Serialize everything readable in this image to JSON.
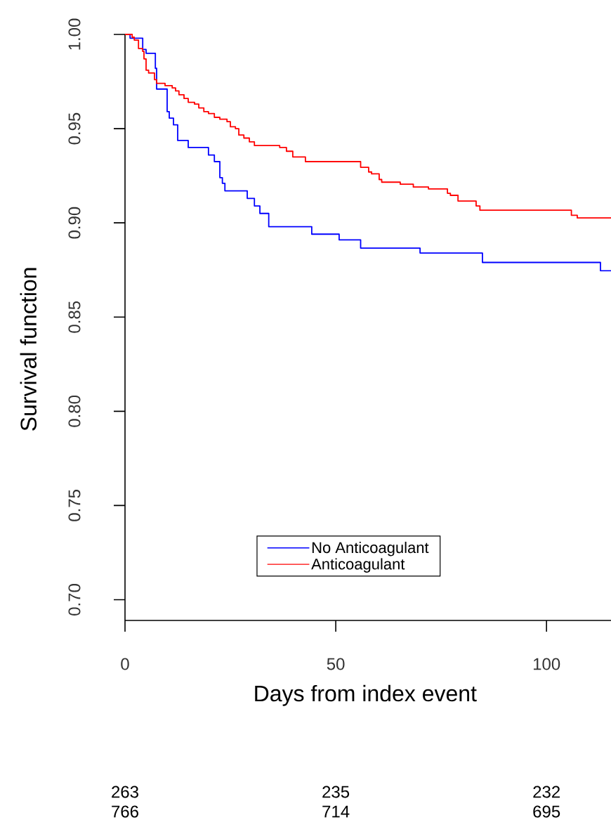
{
  "chart_data": {
    "type": "step",
    "xlabel": "Days from index event",
    "ylabel": "Survival function",
    "xlim": [
      0,
      115.3
    ],
    "ylim": [
      0.689,
      1.0
    ],
    "xticks": [
      0,
      50,
      100
    ],
    "yticks": [
      {
        "value": 0.7,
        "label": "0.70"
      },
      {
        "value": 0.75,
        "label": "0.75"
      },
      {
        "value": 0.8,
        "label": "0.80"
      },
      {
        "value": 0.85,
        "label": "0.85"
      },
      {
        "value": 0.9,
        "label": "0.90"
      },
      {
        "value": 0.95,
        "label": "0.95"
      },
      {
        "value": 1.0,
        "label": "1.00"
      }
    ],
    "legend": "bottom",
    "grid": false,
    "marker": "none",
    "line_style": "solid",
    "series": [
      {
        "name": "No Anticoagulant",
        "color": "#0000ff",
        "x": [
          0,
          1.2,
          4.2,
          5,
          7.2,
          7.5,
          10,
          10.5,
          11.5,
          12.5,
          13,
          15,
          19.8,
          21.2,
          22.5,
          23.1,
          23.7,
          29,
          30.7,
          32,
          34.1,
          44.3,
          50.8,
          55.9,
          70,
          84.8,
          112.8,
          115.3
        ],
        "values": [
          1.0,
          0.998,
          0.992,
          0.99,
          0.982,
          0.971,
          0.959,
          0.9556,
          0.952,
          0.9437,
          0.9437,
          0.94,
          0.936,
          0.9325,
          0.924,
          0.921,
          0.917,
          0.913,
          0.909,
          0.905,
          0.898,
          0.894,
          0.891,
          0.8866,
          0.884,
          0.879,
          0.8746,
          0.8746
        ]
      },
      {
        "name": "Anticoagulant",
        "color": "#ff0000",
        "x": [
          0,
          1.7,
          2.2,
          3.2,
          4.2,
          4.5,
          5,
          5.6,
          7,
          7.5,
          9.5,
          11.2,
          12,
          12.8,
          14,
          15,
          16.5,
          17.5,
          18.7,
          19.8,
          21.2,
          22.5,
          24.2,
          25,
          26.2,
          27,
          28.2,
          29.5,
          30.7,
          36.7,
          38.3,
          39.8,
          42.8,
          55.9,
          57.8,
          58.5,
          60.3,
          60.9,
          65.3,
          68.4,
          72,
          76.5,
          77.2,
          79,
          83.3,
          84.2,
          105.9,
          107.3,
          115.3
        ],
        "values": [
          1.0,
          0.9985,
          0.997,
          0.9925,
          0.991,
          0.987,
          0.981,
          0.9795,
          0.976,
          0.974,
          0.9728,
          0.9716,
          0.97,
          0.968,
          0.966,
          0.964,
          0.963,
          0.961,
          0.959,
          0.958,
          0.956,
          0.955,
          0.9537,
          0.951,
          0.95,
          0.9466,
          0.945,
          0.943,
          0.941,
          0.94,
          0.938,
          0.935,
          0.9325,
          0.9295,
          0.927,
          0.926,
          0.923,
          0.9216,
          0.9205,
          0.919,
          0.918,
          0.9157,
          0.9146,
          0.9116,
          0.909,
          0.9067,
          0.904,
          0.9026,
          0.9026
        ]
      }
    ],
    "annotations": [
      "263",
      "235",
      "232",
      "766",
      "714",
      "695"
    ]
  }
}
